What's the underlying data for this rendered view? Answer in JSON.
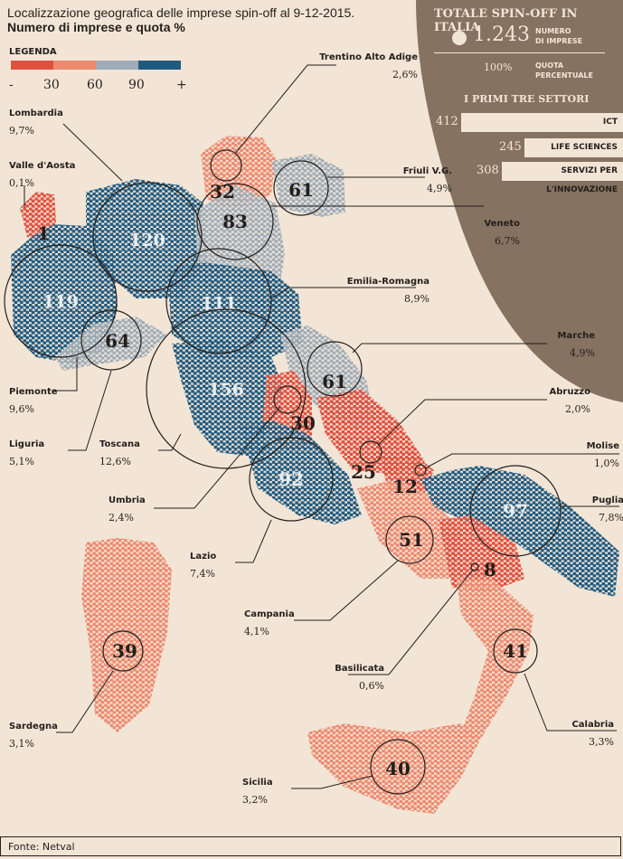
{
  "title": {
    "line1": "Localizzazione geografica delle imprese spin-off al 9-12-2015.",
    "line2": "Numero di imprese e quota %"
  },
  "legend": {
    "title": "LEGENDA",
    "labels": [
      "-",
      "30",
      "60",
      "90",
      "+"
    ],
    "colors": [
      "#e0503f",
      "#ec8a70",
      "#9eacb8",
      "#1f5a80"
    ]
  },
  "totals": {
    "title": "TOTALE SPIN-OFF IN ITALIA",
    "number": "1.243",
    "number_label1": "NUMERO",
    "number_label2": "DI IMPRESE",
    "share": "100%",
    "share_label1": "QUOTA",
    "share_label2": "PERCENTUALE",
    "sectors_title": "I PRIMI TRE SETTORI",
    "sectors": [
      {
        "value": "412",
        "label": "ICT"
      },
      {
        "value": "245",
        "label": "LIFE SCIENCES"
      },
      {
        "value": "308",
        "label": "SERVIZI PER L'INNOVAZIONE"
      }
    ],
    "panel_color": "#857260"
  },
  "regions": [
    {
      "name": "Valle d'Aosta",
      "count": "1",
      "share": "0,1%",
      "cls": 0
    },
    {
      "name": "Piemonte",
      "count": "119",
      "share": "9,6%",
      "cls": 3
    },
    {
      "name": "Lombardia",
      "count": "120",
      "share": "9,7%",
      "cls": 3
    },
    {
      "name": "Trentino Alto Adige",
      "count": "32",
      "share": "2,6%",
      "cls": 1
    },
    {
      "name": "Friuli V.G.",
      "count": "61",
      "share": "4,9%",
      "cls": 2
    },
    {
      "name": "Veneto",
      "count": "83",
      "share": "6,7%",
      "cls": 2
    },
    {
      "name": "Liguria",
      "count": "64",
      "share": "5,1%",
      "cls": 2
    },
    {
      "name": "Emilia-Romagna",
      "count": "111",
      "share": "8,9%",
      "cls": 3
    },
    {
      "name": "Toscana",
      "count": "156",
      "share": "12,6%",
      "cls": 3
    },
    {
      "name": "Marche",
      "count": "61",
      "share": "4,9%",
      "cls": 2
    },
    {
      "name": "Umbria",
      "count": "30",
      "share": "2,4%",
      "cls": 0
    },
    {
      "name": "Lazio",
      "count": "92",
      "share": "7,4%",
      "cls": 3
    },
    {
      "name": "Abruzzo",
      "count": "25",
      "share": "2,0%",
      "cls": 0
    },
    {
      "name": "Molise",
      "count": "12",
      "share": "1,0%",
      "cls": 0
    },
    {
      "name": "Campania",
      "count": "51",
      "share": "4,1%",
      "cls": 1
    },
    {
      "name": "Puglia",
      "count": "97",
      "share": "7,8%",
      "cls": 3
    },
    {
      "name": "Basilicata",
      "count": "8",
      "share": "0,6%",
      "cls": 0
    },
    {
      "name": "Calabria",
      "count": "41",
      "share": "3,3%",
      "cls": 1
    },
    {
      "name": "Sicilia",
      "count": "40",
      "share": "3,2%",
      "cls": 1
    },
    {
      "name": "Sardegna",
      "count": "39",
      "share": "3,1%",
      "cls": 1
    }
  ],
  "source": "Fonte: Netval"
}
